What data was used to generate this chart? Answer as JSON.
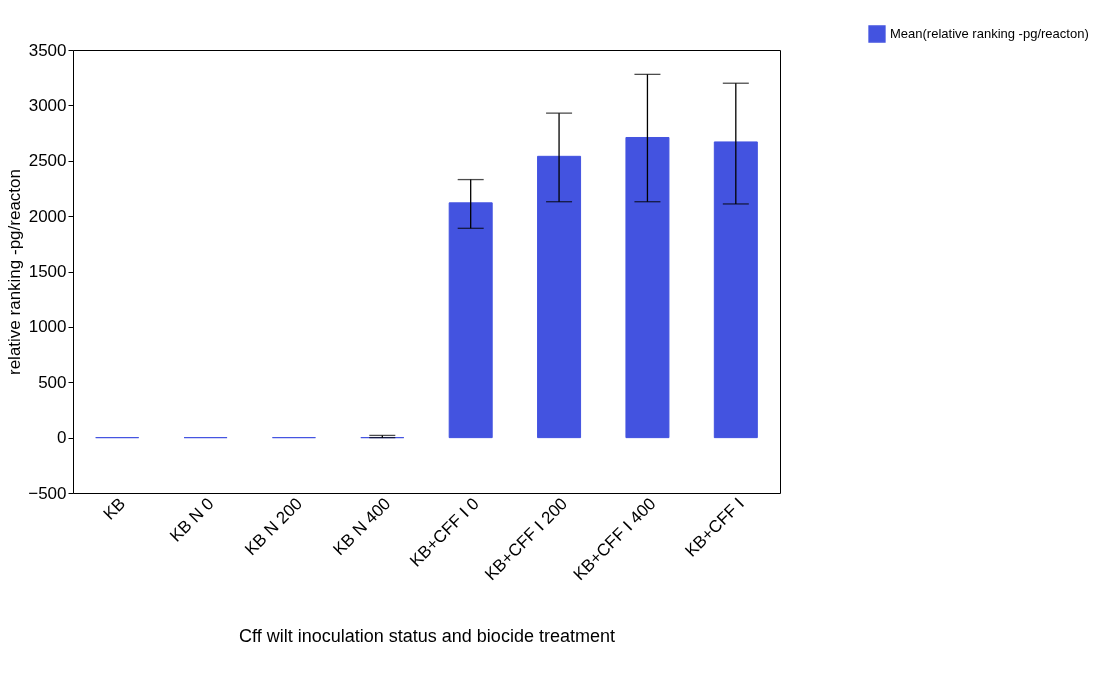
{
  "chart_data": {
    "type": "bar",
    "xlabel": "Cff wilt inoculation status and biocide treatment",
    "ylabel": "relative ranking -pg/reacton",
    "categories": [
      "KB",
      "KB N 0",
      "KB N 200",
      "KB N 400",
      "KB+CFF I 0",
      "KB+CFF I 200",
      "KB+CFF I 400",
      "KB+CFF I"
    ],
    "series": [
      {
        "name": "Mean(relative ranking -pg/reacton)",
        "color": "#4353e0",
        "values": [
          0,
          0,
          0,
          0,
          2120,
          2540,
          2710,
          2670
        ],
        "errors": [
          null,
          null,
          null,
          [
            0,
            20
          ],
          [
            1890,
            2330
          ],
          [
            2130,
            2930
          ],
          [
            2130,
            3280
          ],
          [
            2110,
            3200
          ]
        ]
      }
    ],
    "ylim": [
      -500,
      3500
    ],
    "yticks": [
      -500,
      0,
      500,
      1000,
      1500,
      2000,
      2500,
      3000,
      3500
    ],
    "grid": false,
    "legend": "top right"
  }
}
